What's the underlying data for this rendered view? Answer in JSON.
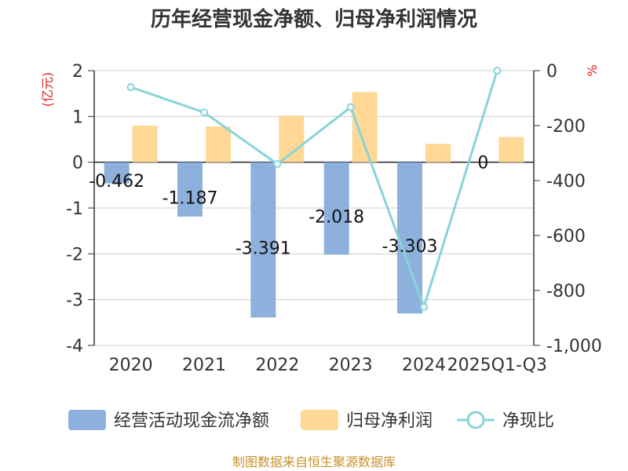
{
  "title": "历年经营现金净额、归母净利润情况",
  "source": "制图数据来自恒生聚源数据库",
  "left_unit": "(亿元)",
  "right_unit": "%",
  "colors": {
    "ocf": "#8eb0dc",
    "profit": "#ffd896",
    "ratio": "#88d4d8",
    "unit": "#e02020",
    "source": "#c8922a"
  },
  "chart_data": {
    "type": "bar+line",
    "title": "历年经营现金净额、归母净利润情况",
    "categories": [
      "2020",
      "2021",
      "2022",
      "2023",
      "2024",
      "2025Q1-Q3"
    ],
    "series": [
      {
        "name": "经营活动现金流净额",
        "type": "bar",
        "axis": "left",
        "values": [
          -0.462,
          -1.187,
          -3.391,
          -2.018,
          -3.303,
          0
        ],
        "labels": [
          "-0.462",
          "-1.187",
          "-3.391",
          "-2.018",
          "-3.303",
          "0"
        ]
      },
      {
        "name": "归母净利润",
        "type": "bar",
        "axis": "left",
        "values": [
          0.8,
          0.78,
          1.02,
          1.53,
          0.4,
          0.55
        ]
      },
      {
        "name": "净现比",
        "type": "line",
        "axis": "right",
        "values": [
          -60,
          -152,
          -340,
          -133,
          -860,
          0
        ]
      }
    ],
    "left_axis": {
      "label": "(亿元)",
      "min": -4,
      "max": 2,
      "ticks": [
        "2",
        "1",
        "0",
        "-1",
        "-2",
        "-3",
        "-4"
      ]
    },
    "right_axis": {
      "label": "%",
      "min": -1000,
      "max": 0,
      "ticks": [
        "0",
        "-200",
        "-400",
        "-600",
        "-800",
        "-1,000"
      ]
    },
    "legend": [
      "经营活动现金流净额",
      "归母净利润",
      "净现比"
    ],
    "legend_position": "bottom"
  }
}
